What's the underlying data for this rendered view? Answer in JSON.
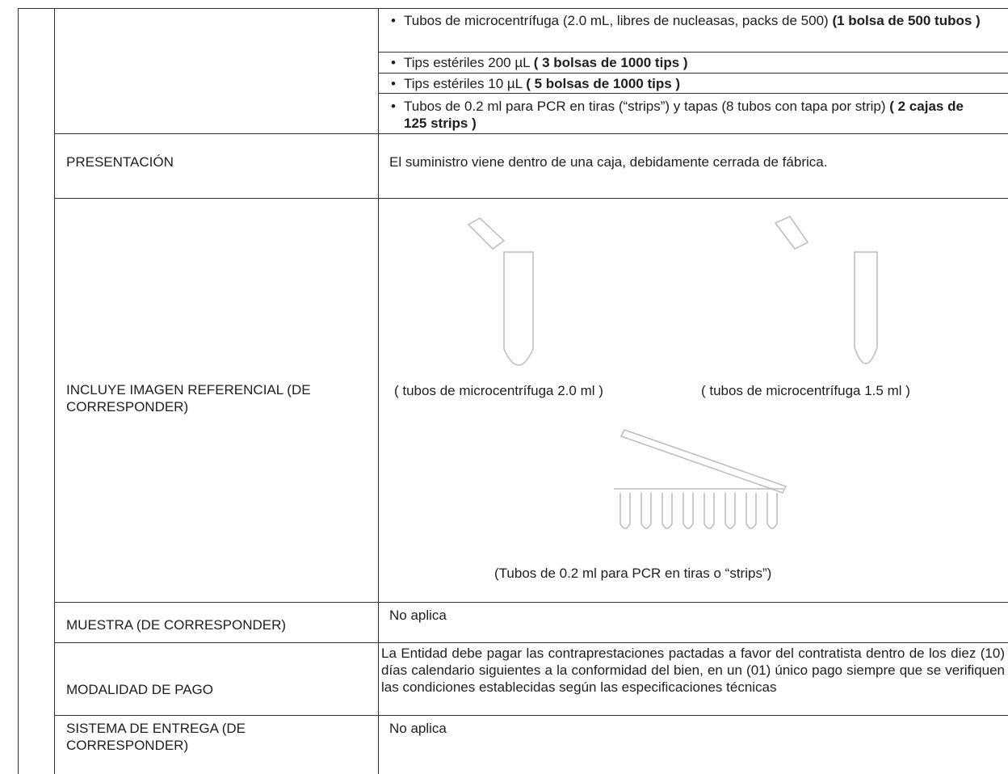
{
  "table": {
    "rows": [
      {
        "items": [
          {
            "text": "Tubos de microcentrífuga (2.0 mL, libres de nucleasas, packs de 500)",
            "bold": "(1 bolsa de 500 tubos )"
          },
          {
            "text": "Tips estériles 200 µL",
            "bold": "( 3 bolsas de 1000 tips )"
          },
          {
            "text": "Tips estériles 10 µL",
            "bold": "( 5 bolsas de 1000 tips )"
          },
          {
            "text": "Tubos de 0.2 ml para PCR en tiras (“strips”) y tapas (8 tubos con tapa por strip)",
            "bold": "( 2 cajas de 125 strips )"
          }
        ]
      },
      {
        "label": "PRESENTACIÓN",
        "content": "El suministro viene dentro de una caja, debidamente cerrada de fábrica."
      },
      {
        "label": "INCLUYE IMAGEN REFERENCIAL (DE CORRESPONDER)",
        "captions": [
          "( tubos de microcentrífuga 2.0 ml )",
          "( tubos de microcentrífuga 1.5 ml )",
          "(Tubos de 0.2 ml para PCR en tiras o “strips”)"
        ]
      },
      {
        "label": "MUESTRA (DE CORRESPONDER)",
        "content": "No aplica"
      },
      {
        "label": "MODALIDAD DE PAGO",
        "content": "La Entidad debe pagar las contraprestaciones pactadas a favor del contratista dentro de los diez (10) días calendario siguientes a la conformidad del bien, en un (01) único pago siempre que se verifiquen las condiciones establecidas según las especificaciones técnicas"
      },
      {
        "label": "SISTEMA DE ENTREGA (DE CORRESPONDER)",
        "content": "No aplica"
      }
    ]
  }
}
